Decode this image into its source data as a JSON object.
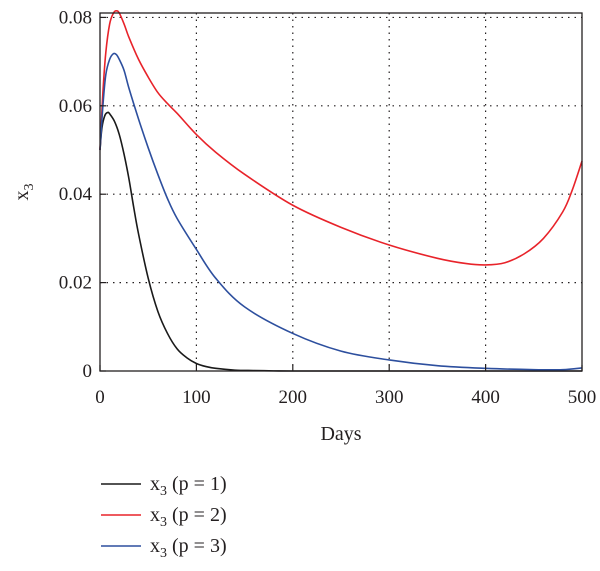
{
  "chart_data": {
    "type": "line",
    "title": "",
    "xlabel": "Days",
    "ylabel_base": "x",
    "ylabel_sub": "3",
    "xlim": [
      0,
      500
    ],
    "ylim": [
      0,
      0.081
    ],
    "x_ticks": [
      0,
      100,
      200,
      300,
      400,
      500
    ],
    "x_tick_labels": [
      "0",
      "100",
      "200",
      "300",
      "400",
      "500"
    ],
    "y_ticks": [
      0,
      0.02,
      0.04,
      0.06,
      0.08
    ],
    "y_tick_labels": [
      "0",
      "0.02",
      "0.04",
      "0.06",
      "0.08"
    ],
    "grid": true,
    "legend_position": "below",
    "series": [
      {
        "name": "x3 (p = 1)",
        "label_base": "x",
        "label_sub": "3",
        "label_rest": " (p = 1)",
        "color": "#1a1a1a",
        "x": [
          0,
          2,
          5,
          8,
          10,
          15,
          20,
          25,
          30,
          35,
          40,
          50,
          60,
          70,
          80,
          90,
          100,
          110,
          120,
          140,
          160,
          180,
          200,
          250,
          300,
          400,
          500
        ],
        "y": [
          0.05,
          0.055,
          0.0578,
          0.0585,
          0.0582,
          0.0565,
          0.0535,
          0.049,
          0.0435,
          0.037,
          0.031,
          0.021,
          0.0135,
          0.0085,
          0.005,
          0.003,
          0.0017,
          0.001,
          0.0006,
          0.0002,
          0.0001,
          3e-05,
          0.0,
          0.0,
          0.0,
          0.0,
          0.0
        ]
      },
      {
        "name": "x3 (p = 2)",
        "label_base": "x",
        "label_sub": "3",
        "label_rest": " (p = 2)",
        "color": "#e8232a",
        "x": [
          0,
          3,
          6,
          10,
          14,
          17,
          20,
          25,
          30,
          40,
          50,
          60,
          70,
          80,
          100,
          120,
          150,
          200,
          250,
          300,
          350,
          380,
          400,
          420,
          440,
          460,
          480,
          490,
          500
        ],
        "y": [
          0.05,
          0.063,
          0.072,
          0.0785,
          0.081,
          0.0815,
          0.081,
          0.0785,
          0.0755,
          0.0705,
          0.0665,
          0.063,
          0.0605,
          0.0583,
          0.0535,
          0.0495,
          0.0445,
          0.0375,
          0.0325,
          0.0285,
          0.0255,
          0.0243,
          0.024,
          0.0245,
          0.0265,
          0.03,
          0.036,
          0.041,
          0.0475
        ]
      },
      {
        "name": "x3 (p = 3)",
        "label_base": "x",
        "label_sub": "3",
        "label_rest": " (p = 3)",
        "color": "#2d4f9e",
        "x": [
          0,
          3,
          6,
          10,
          14,
          17,
          20,
          25,
          30,
          40,
          50,
          60,
          70,
          80,
          100,
          120,
          150,
          200,
          250,
          300,
          350,
          400,
          450,
          480,
          500
        ],
        "y": [
          0.05,
          0.06,
          0.067,
          0.0705,
          0.0718,
          0.0716,
          0.0705,
          0.068,
          0.064,
          0.057,
          0.0505,
          0.0445,
          0.039,
          0.0345,
          0.0275,
          0.021,
          0.0145,
          0.0085,
          0.0045,
          0.0025,
          0.0012,
          0.0006,
          0.0003,
          0.0003,
          0.0007
        ]
      }
    ]
  }
}
